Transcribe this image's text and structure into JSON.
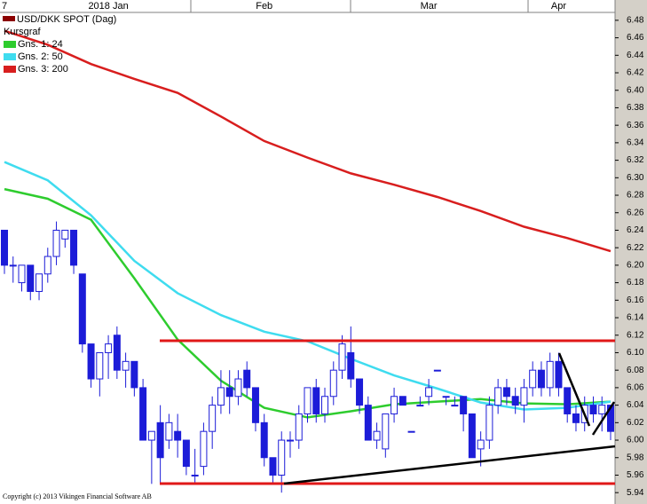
{
  "chart_data": {
    "type": "candlestick",
    "title": "USD/DKK SPOT (Dag)",
    "legend_title": "Kursgraf",
    "footer": "Copyright (c) 2013 Vikingen Financial Software AB",
    "categories": [
      "7",
      null,
      null,
      null,
      null,
      null,
      null,
      null,
      null,
      null,
      null,
      null,
      "2018 Jan",
      null,
      null,
      null,
      null,
      null,
      null,
      null,
      null,
      null,
      null,
      null,
      null,
      null,
      null,
      null,
      null,
      null,
      "Feb",
      null,
      null,
      null,
      null,
      null,
      null,
      null,
      null,
      null,
      null,
      null,
      null,
      null,
      null,
      null,
      null,
      null,
      null,
      "Mar",
      null,
      null,
      null,
      null,
      null,
      null,
      null,
      null,
      null,
      null,
      null,
      null,
      null,
      null,
      "Apr",
      null,
      null,
      null,
      null,
      null,
      null
    ],
    "ohlc": {
      "open": [
        6.24,
        6.2,
        6.18,
        6.2,
        6.17,
        6.19,
        6.21,
        6.23,
        6.24,
        6.19,
        6.11,
        6.07,
        6.1,
        6.12,
        6.08,
        6.09,
        6.06,
        6.0,
        6.02,
        6.0,
        6.01,
        6.0,
        5.96,
        5.97,
        6.01,
        6.04,
        6.06,
        6.05,
        6.08,
        6.06,
        6.02,
        5.98,
        5.96,
        6.0,
        6.0,
        6.03,
        6.06,
        6.03,
        6.05,
        6.08,
        6.1,
        6.07,
        6.04,
        6.0,
        5.99,
        6.03,
        6.05,
        6.01,
        6.04,
        6.05,
        6.08,
        6.05,
        6.04,
        6.05,
        6.03,
        5.99,
        6.0,
        6.04,
        6.06,
        6.05,
        6.04,
        6.06,
        6.08,
        6.06,
        6.09,
        6.06,
        6.03,
        6.02,
        6.04,
        6.03,
        6.04
      ],
      "high": [
        6.24,
        6.21,
        6.2,
        6.2,
        6.19,
        6.22,
        6.25,
        6.24,
        6.24,
        6.19,
        6.11,
        6.1,
        6.12,
        6.13,
        6.1,
        6.09,
        6.07,
        6.01,
        6.04,
        6.03,
        6.03,
        6.0,
        5.99,
        6.02,
        6.05,
        6.08,
        6.08,
        6.08,
        6.09,
        6.06,
        6.03,
        5.98,
        6.01,
        6.01,
        6.04,
        6.06,
        6.07,
        6.06,
        6.09,
        6.12,
        6.13,
        6.07,
        6.05,
        6.02,
        6.03,
        6.06,
        6.05,
        6.01,
        6.05,
        6.07,
        6.08,
        6.05,
        6.05,
        6.05,
        6.03,
        6.01,
        6.05,
        6.07,
        6.07,
        6.06,
        6.07,
        6.09,
        6.09,
        6.1,
        6.1,
        6.06,
        6.04,
        6.05,
        6.05,
        6.05,
        6.04
      ],
      "low": [
        6.19,
        6.18,
        6.17,
        6.16,
        6.16,
        6.18,
        6.2,
        6.22,
        6.19,
        6.1,
        6.06,
        6.05,
        6.07,
        6.07,
        6.06,
        6.05,
        6.0,
        5.95,
        5.95,
        5.99,
        5.98,
        5.96,
        5.95,
        5.96,
        5.99,
        6.03,
        6.03,
        6.04,
        6.05,
        6.01,
        5.97,
        5.95,
        5.94,
        5.98,
        5.99,
        6.02,
        6.02,
        6.02,
        6.04,
        6.07,
        6.06,
        6.03,
        6.0,
        5.99,
        5.98,
        6.02,
        6.04,
        6.01,
        6.04,
        6.04,
        6.08,
        6.04,
        6.04,
        6.01,
        5.98,
        5.97,
        5.99,
        6.03,
        6.04,
        6.03,
        6.02,
        6.05,
        6.05,
        6.05,
        6.05,
        6.02,
        6.01,
        6.01,
        6.02,
        6.01,
        6.0
      ],
      "close": [
        6.2,
        6.2,
        6.2,
        6.17,
        6.19,
        6.21,
        6.24,
        6.24,
        6.2,
        6.11,
        6.07,
        6.1,
        6.11,
        6.08,
        6.09,
        6.06,
        6.0,
        6.01,
        5.98,
        6.02,
        6.0,
        5.97,
        5.96,
        6.01,
        6.04,
        6.06,
        6.05,
        6.07,
        6.06,
        6.02,
        5.98,
        5.96,
        6.0,
        6.0,
        6.03,
        6.06,
        6.03,
        6.05,
        6.08,
        6.11,
        6.07,
        6.04,
        6.0,
        6.01,
        6.03,
        6.05,
        6.04,
        6.01,
        6.04,
        6.06,
        6.08,
        6.05,
        6.04,
        6.03,
        5.98,
        6.0,
        6.04,
        6.06,
        6.05,
        6.04,
        6.06,
        6.08,
        6.06,
        6.09,
        6.06,
        6.03,
        6.02,
        6.04,
        6.03,
        6.04,
        6.01
      ],
      "up_color": "#ffffff",
      "down_color": "#1c1cd8",
      "edge_color": "#1c1cd8"
    },
    "series": [
      {
        "name": "Gns. 1: 24",
        "color": "#2ecc2e",
        "x": [
          0,
          5,
          10,
          15,
          20,
          25,
          30,
          35,
          40,
          45,
          50,
          55,
          60,
          65,
          70
        ],
        "values": [
          6.287,
          6.276,
          6.252,
          6.185,
          6.115,
          6.068,
          6.037,
          6.026,
          6.033,
          6.041,
          6.044,
          6.047,
          6.042,
          6.041,
          6.044
        ]
      },
      {
        "name": "Gns. 2: 50",
        "color": "#3fdcef",
        "x": [
          0,
          5,
          10,
          15,
          20,
          25,
          30,
          35,
          40,
          45,
          50,
          55,
          60,
          65,
          70
        ],
        "values": [
          6.318,
          6.297,
          6.257,
          6.205,
          6.168,
          6.143,
          6.124,
          6.113,
          6.093,
          6.074,
          6.059,
          6.043,
          6.035,
          6.037,
          6.044
        ]
      },
      {
        "name": "Gns. 3: 200",
        "color": "#d81e1e",
        "x": [
          0,
          5,
          10,
          15,
          20,
          25,
          30,
          35,
          40,
          45,
          50,
          55,
          60,
          65,
          70
        ],
        "values": [
          6.468,
          6.452,
          6.43,
          6.413,
          6.397,
          6.37,
          6.342,
          6.323,
          6.305,
          6.292,
          6.278,
          6.262,
          6.244,
          6.231,
          6.216
        ]
      }
    ],
    "ylim": [
      5.927,
      6.489
    ],
    "yticks": [
      5.94,
      5.96,
      5.98,
      {
        "value": 6.0,
        "label": "6.00"
      },
      6.02,
      6.04,
      6.06,
      6.08,
      {
        "value": 6.1,
        "label": "6.10"
      },
      6.12,
      6.14,
      6.16,
      6.18,
      {
        "value": 6.2,
        "label": "6.20"
      },
      6.22,
      6.24,
      6.26,
      6.28,
      {
        "value": 6.3,
        "label": "6.30"
      },
      6.32,
      6.34,
      6.36,
      6.38,
      {
        "value": 6.4,
        "label": "6.40"
      },
      6.42,
      6.44,
      6.46,
      6.48
    ]
  }
}
